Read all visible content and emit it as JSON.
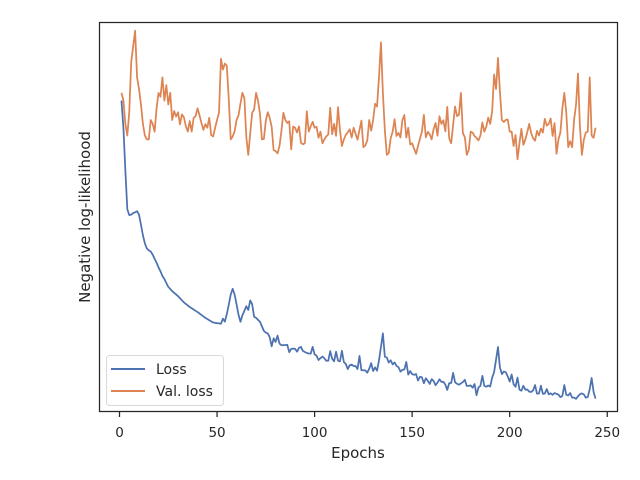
{
  "chart_data": {
    "type": "line",
    "title": "",
    "xlabel": "Epochs",
    "ylabel": "Negative log-likelihood",
    "xlim": [
      -10,
      255
    ],
    "ylim": [
      0,
      100
    ],
    "xticks": [
      0,
      50,
      100,
      150,
      200,
      250
    ],
    "yticks": [],
    "grid": false,
    "legend": {
      "position": "lower-left",
      "entries": [
        "Loss",
        "Val. loss"
      ]
    },
    "series": [
      {
        "name": "Loss",
        "color": "#4c72b0",
        "key_points": [
          [
            1,
            80
          ],
          [
            2,
            73
          ],
          [
            3,
            62
          ],
          [
            4,
            52
          ],
          [
            5,
            50.5
          ],
          [
            6,
            50.6
          ],
          [
            7,
            51
          ],
          [
            8,
            51.2
          ],
          [
            9,
            51.5
          ],
          [
            10,
            50.6
          ],
          [
            11,
            48
          ],
          [
            12,
            45.3
          ],
          [
            13,
            43.2
          ],
          [
            14,
            41.9
          ],
          [
            15,
            41.4
          ],
          [
            16,
            41.1
          ],
          [
            17,
            40.3
          ],
          [
            18,
            39.2
          ],
          [
            19,
            38.2
          ],
          [
            20,
            37
          ],
          [
            21,
            36
          ],
          [
            22,
            34.8
          ],
          [
            23,
            34
          ],
          [
            24,
            33
          ],
          [
            25,
            32
          ],
          [
            27,
            30.9
          ],
          [
            30,
            29.6
          ],
          [
            33,
            28
          ],
          [
            36,
            26.8
          ],
          [
            40,
            25.5
          ],
          [
            44,
            24
          ],
          [
            48,
            22.8
          ],
          [
            52,
            22.5
          ],
          [
            55,
            25
          ],
          [
            57,
            30
          ],
          [
            58,
            31.5
          ],
          [
            60,
            27.5
          ],
          [
            62,
            23
          ],
          [
            65,
            27
          ],
          [
            67,
            28.5
          ],
          [
            70,
            24
          ],
          [
            72,
            23
          ],
          [
            75,
            20.2
          ],
          [
            80,
            17.8
          ],
          [
            85,
            17
          ],
          [
            90,
            16
          ],
          [
            95,
            15.2
          ],
          [
            100,
            14.6
          ],
          [
            105,
            13.6
          ],
          [
            110,
            12.8
          ],
          [
            115,
            12.6
          ],
          [
            120,
            11.6
          ],
          [
            125,
            10.5
          ],
          [
            130,
            10.3
          ],
          [
            133,
            13
          ],
          [
            134,
            16.5
          ],
          [
            135,
            20
          ],
          [
            136,
            14
          ],
          [
            140,
            12
          ],
          [
            145,
            10.6
          ],
          [
            150,
            9.5
          ],
          [
            155,
            8.7
          ],
          [
            160,
            8.2
          ],
          [
            165,
            7.5
          ],
          [
            170,
            7.2
          ],
          [
            175,
            7.1
          ],
          [
            180,
            6.6
          ],
          [
            185,
            6.5
          ],
          [
            190,
            6.3
          ],
          [
            192,
            10
          ],
          [
            194,
            16.5
          ],
          [
            196,
            9.5
          ],
          [
            198,
            10
          ],
          [
            200,
            7.6
          ],
          [
            205,
            5.5
          ],
          [
            210,
            5
          ],
          [
            215,
            4.5
          ],
          [
            220,
            4.3
          ],
          [
            225,
            4.2
          ],
          [
            230,
            4.0
          ],
          [
            235,
            3.8
          ],
          [
            240,
            3.6
          ],
          [
            242,
            8.5
          ],
          [
            244,
            3.2
          ]
        ],
        "fluctuation": 1.2,
        "spike_step": 3,
        "spike_size": 2.5,
        "from_epoch": 52
      },
      {
        "name": "Val. loss",
        "color": "#dd8452",
        "key_points": [
          [
            1,
            82
          ],
          [
            2,
            80
          ],
          [
            3,
            74
          ],
          [
            4,
            71
          ],
          [
            5,
            77
          ],
          [
            6,
            90
          ],
          [
            7,
            94
          ],
          [
            8,
            98
          ],
          [
            9,
            86
          ],
          [
            10,
            83
          ],
          [
            11,
            79
          ],
          [
            12,
            74
          ],
          [
            13,
            71
          ],
          [
            14,
            70
          ],
          [
            15,
            70
          ],
          [
            16,
            75
          ],
          [
            17,
            74
          ],
          [
            18,
            72
          ],
          [
            19,
            78
          ],
          [
            20,
            82
          ],
          [
            21,
            81
          ],
          [
            22,
            86
          ],
          [
            23,
            80
          ],
          [
            24,
            84
          ],
          [
            25,
            79
          ],
          [
            26,
            82
          ],
          [
            27,
            75
          ],
          [
            30,
            77
          ],
          [
            35,
            72
          ],
          [
            40,
            78
          ],
          [
            45,
            73
          ],
          [
            50,
            75
          ],
          [
            53,
            88
          ],
          [
            55,
            89
          ],
          [
            57,
            70
          ],
          [
            60,
            75
          ],
          [
            63,
            82
          ],
          [
            66,
            66
          ],
          [
            70,
            82
          ],
          [
            73,
            70
          ],
          [
            76,
            77
          ],
          [
            80,
            67
          ],
          [
            85,
            75
          ],
          [
            90,
            73
          ],
          [
            95,
            69
          ],
          [
            100,
            73
          ],
          [
            105,
            70
          ],
          [
            110,
            74
          ],
          [
            115,
            70
          ],
          [
            120,
            73
          ],
          [
            125,
            68
          ],
          [
            130,
            75
          ],
          [
            133,
            86
          ],
          [
            134,
            95
          ],
          [
            135,
            82
          ],
          [
            137,
            66
          ],
          [
            140,
            72
          ],
          [
            145,
            75
          ],
          [
            150,
            69
          ],
          [
            155,
            72
          ],
          [
            160,
            70
          ],
          [
            165,
            74
          ],
          [
            170,
            69
          ],
          [
            173,
            76
          ],
          [
            175,
            82
          ],
          [
            178,
            66
          ],
          [
            180,
            72
          ],
          [
            185,
            71
          ],
          [
            190,
            74
          ],
          [
            193,
            83
          ],
          [
            194,
            91
          ],
          [
            196,
            75
          ],
          [
            200,
            72
          ],
          [
            205,
            69
          ],
          [
            210,
            74
          ],
          [
            215,
            71
          ],
          [
            220,
            74
          ],
          [
            225,
            70
          ],
          [
            228,
            82
          ],
          [
            230,
            68
          ],
          [
            233,
            75
          ],
          [
            235,
            87
          ],
          [
            237,
            66
          ],
          [
            240,
            72
          ],
          [
            241,
            86
          ],
          [
            242,
            71
          ],
          [
            244,
            73
          ]
        ],
        "fluctuation": 5.5,
        "spike_step": 4,
        "spike_size": 6,
        "from_epoch": 25
      }
    ]
  }
}
